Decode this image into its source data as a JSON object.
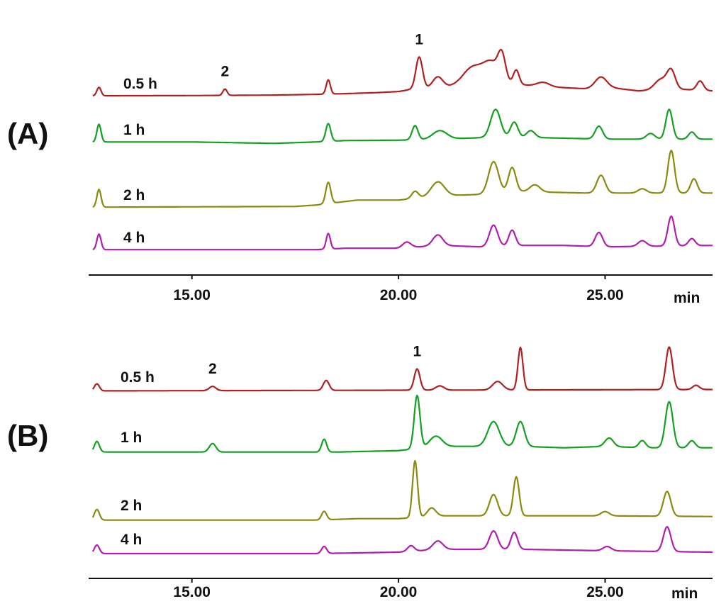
{
  "chart_data": [
    {
      "type": "line",
      "panel_label": "(A)",
      "xlabel": "min",
      "xlim": [
        12.5,
        27.6
      ],
      "xticks": [
        15,
        20,
        25
      ],
      "xtick_labels": [
        "15.00",
        "20.00",
        "25.00"
      ],
      "grid": false,
      "peak_labels": [
        {
          "text": "1",
          "x": 20.5,
          "series": 0
        },
        {
          "text": "2",
          "x": 15.8,
          "series": 0
        }
      ],
      "series": [
        {
          "name": "0.5 h",
          "color": "#b02020",
          "offset": 0,
          "baseline": [
            [
              12.6,
              0
            ],
            [
              15.0,
              0.3
            ],
            [
              17.0,
              1.0
            ],
            [
              18.0,
              2.0
            ],
            [
              18.7,
              3.0
            ],
            [
              19.5,
              4.5
            ],
            [
              20.0,
              6.0
            ],
            [
              20.3,
              9.0
            ],
            [
              21.0,
              12.0
            ],
            [
              21.5,
              13.0
            ],
            [
              22.0,
              18.0
            ],
            [
              22.4,
              20.0
            ],
            [
              22.9,
              16.0
            ],
            [
              23.5,
              13.0
            ],
            [
              24.5,
              10.0
            ],
            [
              25.2,
              11.0
            ],
            [
              25.8,
              7.0
            ],
            [
              26.3,
              8.0
            ],
            [
              26.9,
              9.0
            ],
            [
              27.6,
              7.0
            ]
          ],
          "peaks": [
            [
              12.75,
              12,
              0.05
            ],
            [
              15.8,
              9,
              0.05
            ],
            [
              18.3,
              20,
              0.05
            ],
            [
              20.5,
              45,
              0.08
            ],
            [
              20.95,
              15,
              0.12
            ],
            [
              21.8,
              25,
              0.25
            ],
            [
              22.25,
              25,
              0.18
            ],
            [
              22.5,
              35,
              0.09
            ],
            [
              22.85,
              20,
              0.07
            ],
            [
              23.5,
              6,
              0.15
            ],
            [
              24.9,
              16,
              0.14
            ],
            [
              26.35,
              15,
              0.15
            ],
            [
              26.6,
              26,
              0.1
            ],
            [
              27.3,
              13,
              0.08
            ]
          ]
        },
        {
          "name": "1 h",
          "color": "#14a020",
          "offset": 70,
          "baseline": [
            [
              12.6,
              0
            ],
            [
              15.0,
              0
            ],
            [
              17.0,
              -2.0
            ],
            [
              18.0,
              0
            ],
            [
              18.7,
              2.0
            ],
            [
              20.0,
              2.5
            ],
            [
              21.0,
              4.0
            ],
            [
              22.0,
              6.0
            ],
            [
              23.5,
              6.0
            ],
            [
              25.0,
              4.0
            ],
            [
              27.6,
              4.0
            ]
          ],
          "peaks": [
            [
              12.75,
              25,
              0.05
            ],
            [
              18.3,
              25,
              0.06
            ],
            [
              20.4,
              20,
              0.07
            ],
            [
              21.0,
              12,
              0.17
            ],
            [
              22.35,
              40,
              0.12
            ],
            [
              22.8,
              22,
              0.09
            ],
            [
              23.2,
              10,
              0.1
            ],
            [
              24.85,
              18,
              0.09
            ],
            [
              26.1,
              8,
              0.1
            ],
            [
              26.55,
              42,
              0.08
            ],
            [
              27.1,
              10,
              0.08
            ]
          ]
        },
        {
          "name": "2 h",
          "color": "#8a8a10",
          "offset": 160,
          "baseline": [
            [
              12.6,
              0
            ],
            [
              17.5,
              1.0
            ],
            [
              18.0,
              3.0
            ],
            [
              19.0,
              10.0
            ],
            [
              20.0,
              10.0
            ],
            [
              21.0,
              16.0
            ],
            [
              22.0,
              18.0
            ],
            [
              23.0,
              22.0
            ],
            [
              24.5,
              20.0
            ],
            [
              25.0,
              20.0
            ],
            [
              26.0,
              20.0
            ],
            [
              27.6,
              20.0
            ]
          ],
          "peaks": [
            [
              12.75,
              25,
              0.05
            ],
            [
              18.3,
              30,
              0.06
            ],
            [
              20.4,
              10,
              0.08
            ],
            [
              20.95,
              20,
              0.16
            ],
            [
              22.3,
              45,
              0.12
            ],
            [
              22.75,
              35,
              0.09
            ],
            [
              23.3,
              10,
              0.12
            ],
            [
              24.9,
              25,
              0.1
            ],
            [
              25.9,
              6,
              0.1
            ],
            [
              26.6,
              60,
              0.08
            ],
            [
              27.15,
              20,
              0.08
            ]
          ]
        },
        {
          "name": "4 h",
          "color": "#b01eb0",
          "offset": 240,
          "baseline": [
            [
              12.6,
              0
            ],
            [
              15.0,
              0
            ],
            [
              18.0,
              0
            ],
            [
              18.7,
              2.0
            ],
            [
              20.0,
              2.0
            ],
            [
              21.0,
              6.0
            ],
            [
              22.0,
              4.0
            ],
            [
              23.0,
              6.0
            ],
            [
              24.0,
              6.0
            ],
            [
              25.0,
              4.0
            ],
            [
              27.6,
              6.0
            ]
          ],
          "peaks": [
            [
              12.75,
              22,
              0.05
            ],
            [
              18.3,
              22,
              0.05
            ],
            [
              20.2,
              8,
              0.1
            ],
            [
              20.95,
              15,
              0.12
            ],
            [
              22.3,
              30,
              0.1
            ],
            [
              22.75,
              22,
              0.08
            ],
            [
              24.85,
              20,
              0.09
            ],
            [
              25.9,
              8,
              0.1
            ],
            [
              26.6,
              42,
              0.08
            ],
            [
              27.1,
              10,
              0.08
            ]
          ]
        }
      ]
    },
    {
      "type": "line",
      "panel_label": "(B)",
      "xlabel": "min",
      "xlim": [
        12.5,
        27.6
      ],
      "xticks": [
        15,
        20,
        25
      ],
      "xtick_labels": [
        "15.00",
        "20.00",
        "25.00"
      ],
      "grid": false,
      "peak_labels": [
        {
          "text": "1",
          "x": 20.45,
          "series": 0
        },
        {
          "text": "2",
          "x": 15.5,
          "series": 0
        }
      ],
      "series": [
        {
          "name": "0.5 h",
          "color": "#b02020",
          "offset": 0,
          "baseline": [
            [
              12.6,
              0
            ],
            [
              27.6,
              2.0
            ]
          ],
          "peaks": [
            [
              12.7,
              10,
              0.06
            ],
            [
              15.5,
              6,
              0.08
            ],
            [
              18.25,
              14,
              0.07
            ],
            [
              20.45,
              30,
              0.07
            ],
            [
              21.0,
              6,
              0.1
            ],
            [
              22.4,
              12,
              0.12
            ],
            [
              22.95,
              60,
              0.06
            ],
            [
              26.55,
              60,
              0.08
            ],
            [
              27.2,
              6,
              0.08
            ]
          ]
        },
        {
          "name": "1 h",
          "color": "#14a020",
          "offset": 85,
          "baseline": [
            [
              12.6,
              0
            ],
            [
              15.0,
              0
            ],
            [
              18.5,
              0
            ],
            [
              20.0,
              2.0
            ],
            [
              21.0,
              8.0
            ],
            [
              23.0,
              8.0
            ],
            [
              24.0,
              6.0
            ],
            [
              25.0,
              8.0
            ],
            [
              26.0,
              6.0
            ],
            [
              27.6,
              6.0
            ]
          ],
          "peaks": [
            [
              12.7,
              15,
              0.06
            ],
            [
              15.5,
              12,
              0.08
            ],
            [
              18.2,
              18,
              0.06
            ],
            [
              20.45,
              75,
              0.07
            ],
            [
              20.9,
              15,
              0.15
            ],
            [
              22.3,
              35,
              0.14
            ],
            [
              22.95,
              35,
              0.1
            ],
            [
              25.1,
              12,
              0.1
            ],
            [
              25.9,
              10,
              0.08
            ],
            [
              26.55,
              65,
              0.09
            ],
            [
              27.1,
              10,
              0.08
            ]
          ]
        },
        {
          "name": "2 h",
          "color": "#8a8a10",
          "offset": 180,
          "baseline": [
            [
              12.6,
              0
            ],
            [
              15.0,
              0
            ],
            [
              18.0,
              0
            ],
            [
              19.0,
              2.0
            ],
            [
              20.0,
              2.0
            ],
            [
              21.0,
              6.0
            ],
            [
              23.0,
              6.0
            ],
            [
              25.0,
              6.0
            ],
            [
              27.6,
              5.0
            ]
          ],
          "peaks": [
            [
              12.7,
              15,
              0.06
            ],
            [
              18.2,
              12,
              0.06
            ],
            [
              20.4,
              80,
              0.06
            ],
            [
              20.8,
              12,
              0.1
            ],
            [
              22.3,
              30,
              0.1
            ],
            [
              22.85,
              55,
              0.07
            ],
            [
              25.0,
              6,
              0.1
            ],
            [
              26.5,
              35,
              0.09
            ]
          ]
        },
        {
          "name": "4 h",
          "color": "#b01eb0",
          "offset": 240,
          "baseline": [
            [
              12.6,
              0
            ],
            [
              15.0,
              0
            ],
            [
              18.0,
              0
            ],
            [
              20.0,
              2.0
            ],
            [
              21.0,
              6.0
            ],
            [
              23.0,
              6.0
            ],
            [
              25.0,
              4.0
            ],
            [
              27.6,
              2.0
            ]
          ],
          "peaks": [
            [
              12.7,
              12,
              0.06
            ],
            [
              18.2,
              10,
              0.06
            ],
            [
              20.3,
              8,
              0.08
            ],
            [
              20.95,
              12,
              0.12
            ],
            [
              22.3,
              26,
              0.1
            ],
            [
              22.8,
              24,
              0.08
            ],
            [
              25.05,
              6,
              0.1
            ],
            [
              26.5,
              35,
              0.09
            ]
          ]
        }
      ]
    }
  ]
}
